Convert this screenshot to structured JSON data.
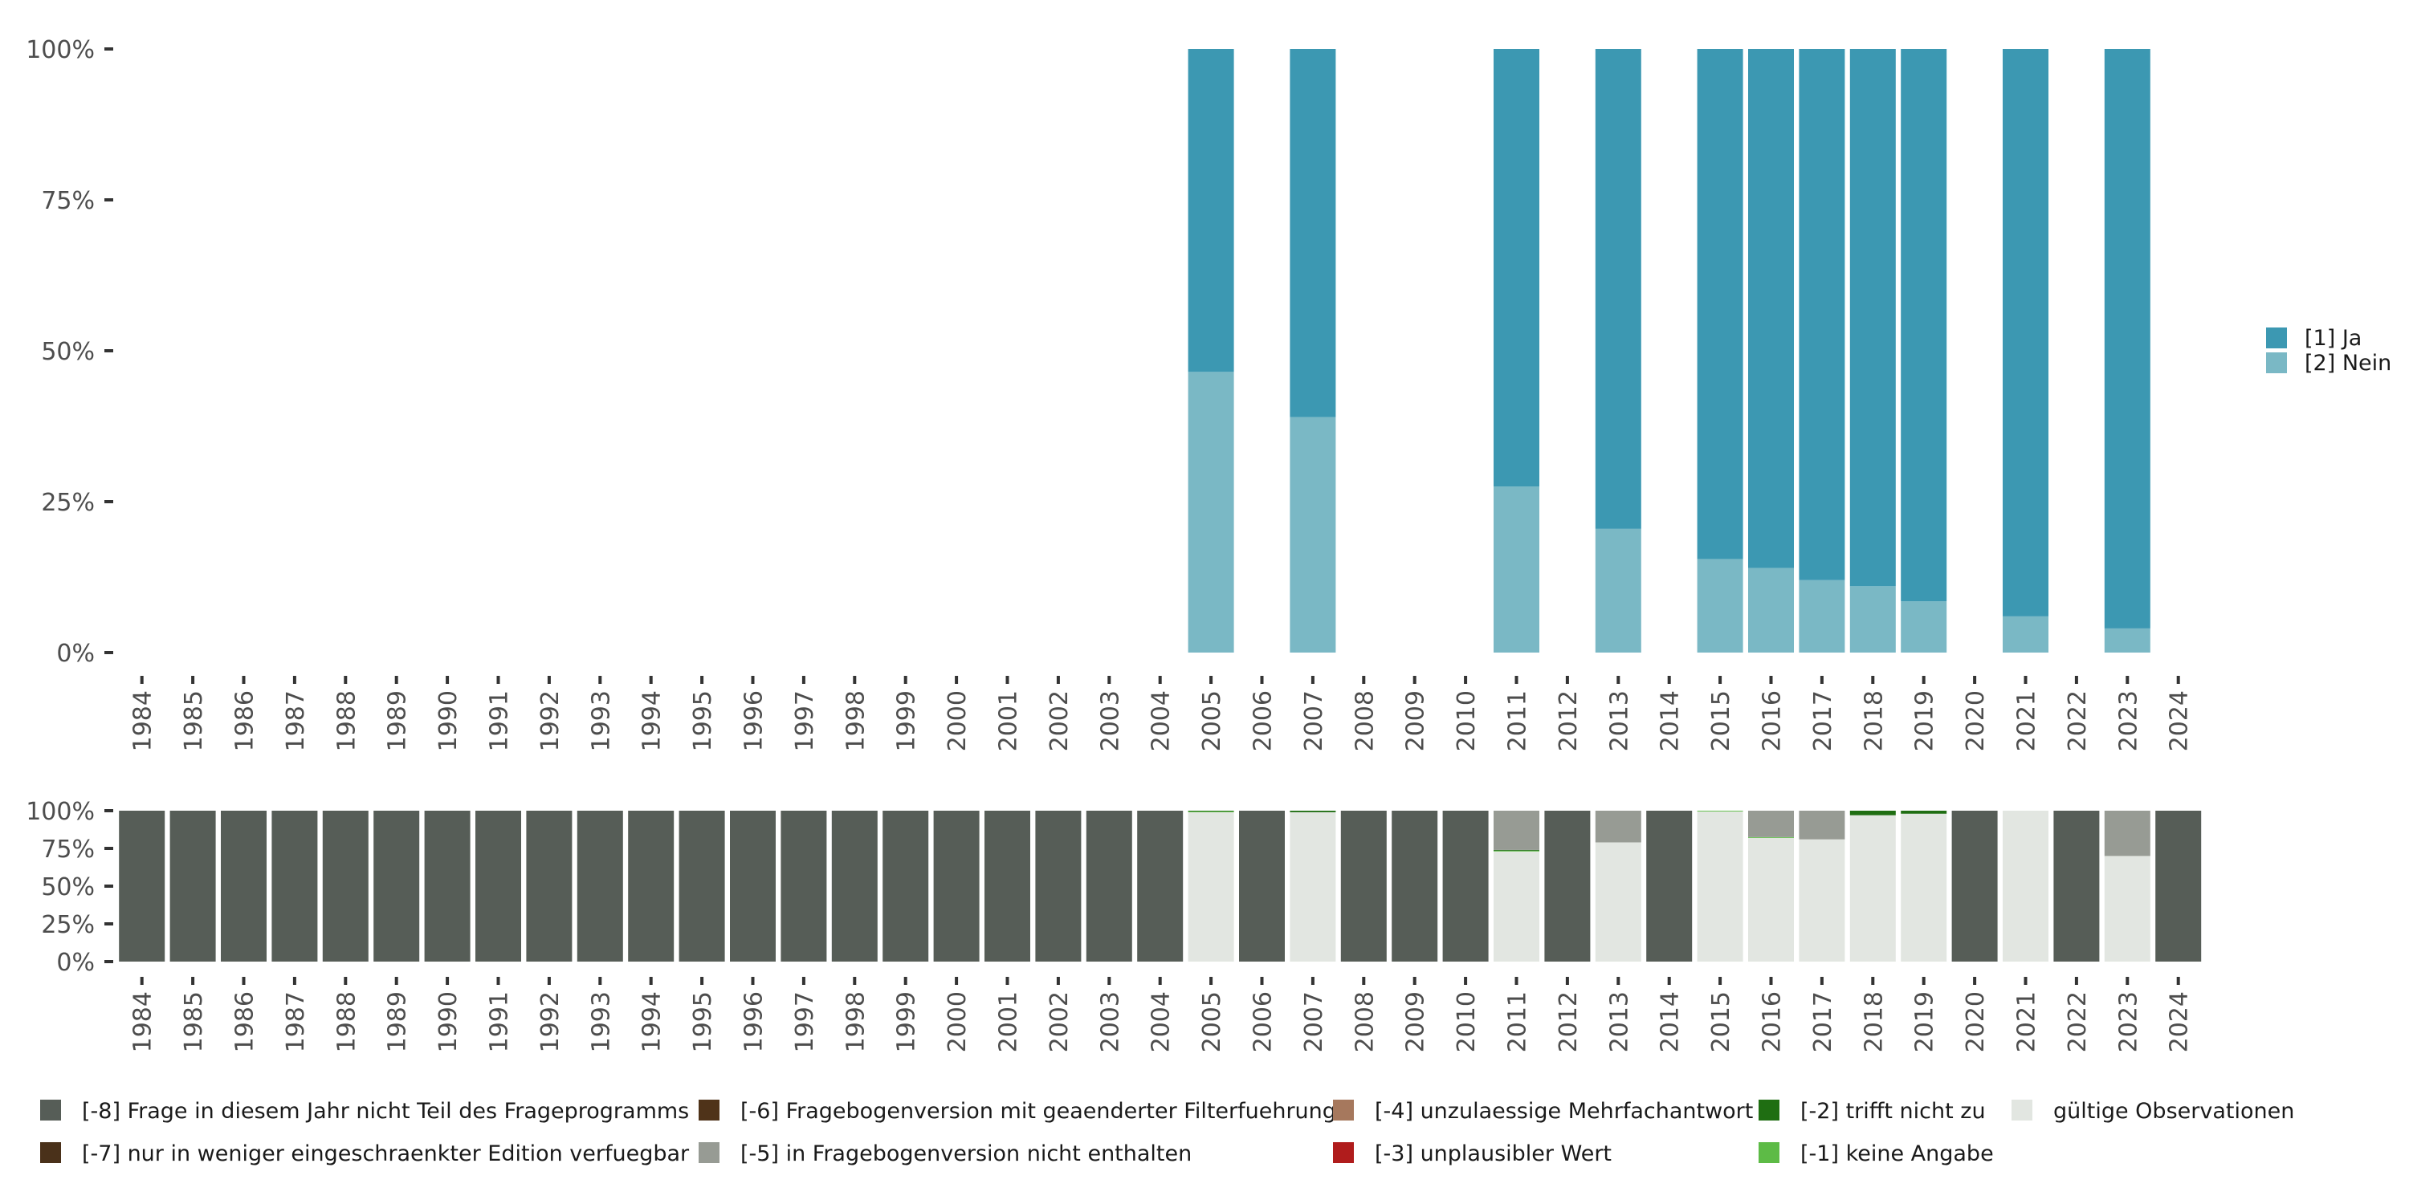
{
  "chart_data": [
    {
      "type": "bar",
      "stacked": true,
      "title": "",
      "xlabel": "",
      "ylabel": "",
      "ylim": [
        0,
        100
      ],
      "y_ticks": [
        "0%",
        "25%",
        "50%",
        "75%",
        "100%"
      ],
      "categories": [
        "1984",
        "1985",
        "1986",
        "1987",
        "1988",
        "1989",
        "1990",
        "1991",
        "1992",
        "1993",
        "1994",
        "1995",
        "1996",
        "1997",
        "1998",
        "1999",
        "2000",
        "2001",
        "2002",
        "2003",
        "2004",
        "2005",
        "2006",
        "2007",
        "2008",
        "2009",
        "2010",
        "2011",
        "2012",
        "2013",
        "2014",
        "2015",
        "2016",
        "2017",
        "2018",
        "2019",
        "2020",
        "2021",
        "2022",
        "2023",
        "2024"
      ],
      "legend_position": "right",
      "series": [
        {
          "name": "[2] Nein",
          "color": "#7ab8c5",
          "values": [
            0,
            0,
            0,
            0,
            0,
            0,
            0,
            0,
            0,
            0,
            0,
            0,
            0,
            0,
            0,
            0,
            0,
            0,
            0,
            0,
            0,
            46.5,
            0,
            39,
            0,
            0,
            0,
            27.5,
            0,
            20.5,
            0,
            15.5,
            14,
            12,
            11,
            8.5,
            0,
            6,
            0,
            4,
            0
          ]
        },
        {
          "name": "[1] Ja",
          "color": "#3c98b2",
          "values": [
            0,
            0,
            0,
            0,
            0,
            0,
            0,
            0,
            0,
            0,
            0,
            0,
            0,
            0,
            0,
            0,
            0,
            0,
            0,
            0,
            0,
            53.5,
            0,
            61,
            0,
            0,
            0,
            72.5,
            0,
            79.5,
            0,
            84.5,
            86,
            88,
            89,
            91.5,
            0,
            94,
            0,
            96,
            0
          ]
        }
      ]
    },
    {
      "type": "bar",
      "stacked": true,
      "title": "",
      "xlabel": "",
      "ylabel": "",
      "ylim": [
        0,
        100
      ],
      "y_ticks": [
        "0%",
        "25%",
        "50%",
        "75%",
        "100%"
      ],
      "categories": [
        "1984",
        "1985",
        "1986",
        "1987",
        "1988",
        "1989",
        "1990",
        "1991",
        "1992",
        "1993",
        "1994",
        "1995",
        "1996",
        "1997",
        "1998",
        "1999",
        "2000",
        "2001",
        "2002",
        "2003",
        "2004",
        "2005",
        "2006",
        "2007",
        "2008",
        "2009",
        "2010",
        "2011",
        "2012",
        "2013",
        "2014",
        "2015",
        "2016",
        "2017",
        "2018",
        "2019",
        "2020",
        "2021",
        "2022",
        "2023",
        "2024"
      ],
      "legend_position": "bottom",
      "series": [
        {
          "name": "gültige Observationen",
          "color": "#e2e6e1",
          "values": [
            0,
            0,
            0,
            0,
            0,
            0,
            0,
            0,
            0,
            0,
            0,
            0,
            0,
            0,
            0,
            0,
            0,
            0,
            0,
            0,
            0,
            99,
            0,
            99,
            0,
            0,
            0,
            73,
            0,
            79,
            0,
            99.5,
            82,
            81,
            97,
            98,
            0,
            100,
            0,
            70,
            0
          ]
        },
        {
          "name": "[-1] keine Angabe",
          "color": "#5dbb46",
          "values": [
            0,
            0,
            0,
            0,
            0,
            0,
            0,
            0,
            0,
            0,
            0,
            0,
            0,
            0,
            0,
            0,
            0,
            0,
            0,
            0,
            0,
            0.5,
            0,
            0,
            0,
            0,
            0,
            0.5,
            0,
            0,
            0,
            0.5,
            0.5,
            0,
            0,
            0,
            0,
            0,
            0,
            0,
            0
          ]
        },
        {
          "name": "[-2] trifft nicht zu",
          "color": "#1f6e12",
          "values": [
            0,
            0,
            0,
            0,
            0,
            0,
            0,
            0,
            0,
            0,
            0,
            0,
            0,
            0,
            0,
            0,
            0,
            0,
            0,
            0,
            0,
            0.5,
            0,
            1,
            0,
            0,
            0,
            0.5,
            0,
            0,
            0,
            0,
            0,
            0,
            3,
            2,
            0,
            0,
            0,
            0,
            0
          ]
        },
        {
          "name": "[-3] unplausibler Wert",
          "color": "#b01c1c",
          "values": [
            0,
            0,
            0,
            0,
            0,
            0,
            0,
            0,
            0,
            0,
            0,
            0,
            0,
            0,
            0,
            0,
            0,
            0,
            0,
            0,
            0,
            0,
            0,
            0,
            0,
            0,
            0,
            0,
            0,
            0,
            0,
            0,
            0,
            0,
            0,
            0,
            0,
            0,
            0,
            0,
            0
          ]
        },
        {
          "name": "[-4] unzulaessige Mehrfachantwort",
          "color": "#a6785d",
          "values": [
            0,
            0,
            0,
            0,
            0,
            0,
            0,
            0,
            0,
            0,
            0,
            0,
            0,
            0,
            0,
            0,
            0,
            0,
            0,
            0,
            0,
            0,
            0,
            0,
            0,
            0,
            0,
            0,
            0,
            0,
            0,
            0,
            0,
            0,
            0,
            0,
            0,
            0,
            0,
            0,
            0
          ]
        },
        {
          "name": "[-5] in Fragebogenversion nicht enthalten",
          "color": "#979b94",
          "values": [
            0,
            0,
            0,
            0,
            0,
            0,
            0,
            0,
            0,
            0,
            0,
            0,
            0,
            0,
            0,
            0,
            0,
            0,
            0,
            0,
            0,
            0,
            0,
            0,
            0,
            0,
            0,
            26,
            0,
            21,
            0,
            0,
            17.5,
            19,
            0,
            0,
            0,
            0,
            0,
            30,
            0
          ]
        },
        {
          "name": "[-6] Fragebogenversion mit geaenderter Filterfuehrung",
          "color": "#4f3319",
          "values": [
            0,
            0,
            0,
            0,
            0,
            0,
            0,
            0,
            0,
            0,
            0,
            0,
            0,
            0,
            0,
            0,
            0,
            0,
            0,
            0,
            0,
            0,
            0,
            0,
            0,
            0,
            0,
            0,
            0,
            0,
            0,
            0,
            0,
            0,
            0,
            0,
            0,
            0,
            0,
            0,
            0
          ]
        },
        {
          "name": "[-7] nur in weniger eingeschraenkter Edition verfuegbar",
          "color": "#4a311a",
          "values": [
            0,
            0,
            0,
            0,
            0,
            0,
            0,
            0,
            0,
            0,
            0,
            0,
            0,
            0,
            0,
            0,
            0,
            0,
            0,
            0,
            0,
            0,
            0,
            0,
            0,
            0,
            0,
            0,
            0,
            0,
            0,
            0,
            0,
            0,
            0,
            0,
            0,
            0,
            0,
            0,
            0
          ]
        },
        {
          "name": "[-8] Frage in diesem Jahr nicht Teil des Frageprogramms",
          "color": "#565d57",
          "values": [
            100,
            100,
            100,
            100,
            100,
            100,
            100,
            100,
            100,
            100,
            100,
            100,
            100,
            100,
            100,
            100,
            100,
            100,
            100,
            100,
            100,
            0,
            100,
            0,
            100,
            100,
            100,
            0,
            100,
            0,
            100,
            0,
            0,
            0,
            0,
            0,
            100,
            0,
            100,
            0,
            100
          ]
        }
      ],
      "legend_order": [
        "[-8] Frage in diesem Jahr nicht Teil des Frageprogramms",
        "[-7] nur in weniger eingeschraenkter Edition verfuegbar",
        "[-6] Fragebogenversion mit geaenderter Filterfuehrung",
        "[-5] in Fragebogenversion nicht enthalten",
        "[-4] unzulaessige Mehrfachantwort",
        "[-3] unplausibler Wert",
        "[-2] trifft nicht zu",
        "[-1] keine Angabe",
        "gültige Observationen"
      ]
    }
  ]
}
